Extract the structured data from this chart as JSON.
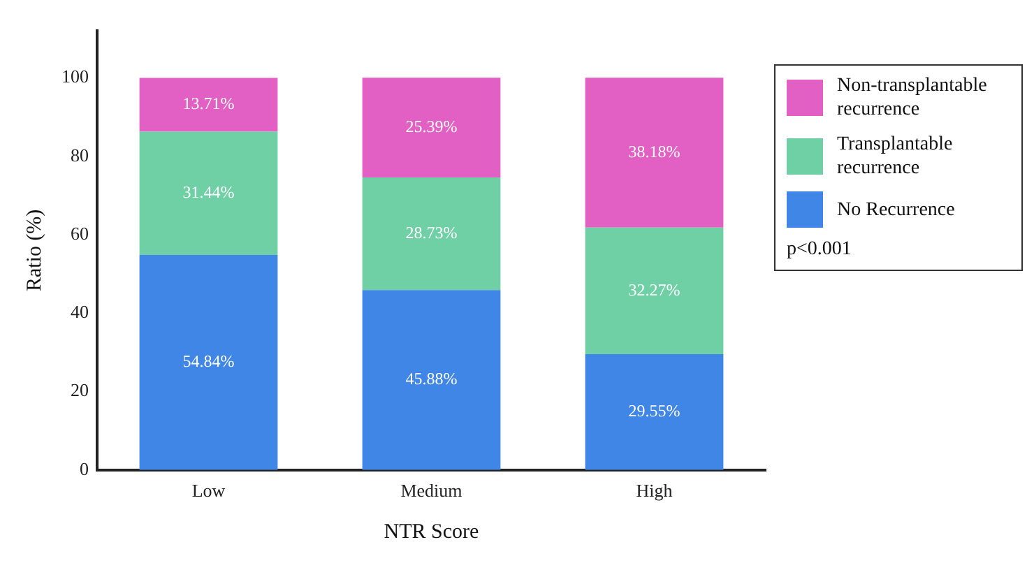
{
  "chart_data": {
    "type": "bar",
    "xlabel": "NTR Score",
    "ylabel": "Ratio (%)",
    "categories": [
      "Low",
      "Medium",
      "High"
    ],
    "stacked": true,
    "ylim": [
      0,
      112
    ],
    "yticks": [
      0,
      20,
      40,
      60,
      80,
      100
    ],
    "grid": false,
    "legend": "top right",
    "annotations": [
      "p<0.001"
    ],
    "series": [
      {
        "name": "No Recurrence",
        "color": "#3f86e6",
        "values": [
          54.84,
          45.88,
          29.55
        ],
        "value_labels": [
          "54.84%",
          "45.88%",
          "29.55%"
        ]
      },
      {
        "name": "Transplantable recurrence",
        "color": "#6fd0a6",
        "values": [
          31.44,
          28.73,
          32.27
        ],
        "value_labels": [
          "31.44%",
          "28.73%",
          "32.27%"
        ]
      },
      {
        "name": "Non-transplantable recurrence",
        "color": "#e25fc3",
        "values": [
          13.71,
          25.39,
          38.18
        ],
        "value_labels": [
          "13.71%",
          "25.39%",
          "38.18%"
        ]
      }
    ]
  }
}
